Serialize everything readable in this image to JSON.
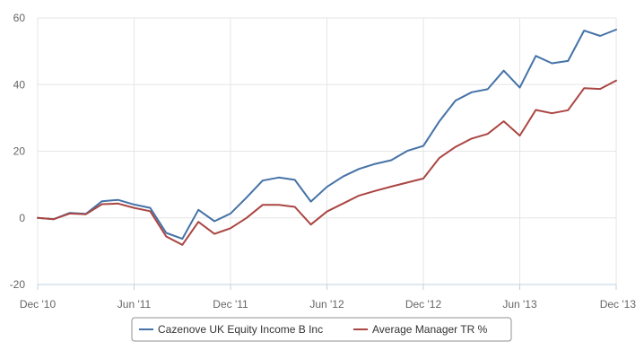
{
  "chart_data": {
    "type": "line",
    "y_ticks": [
      -20,
      0,
      20,
      40,
      60
    ],
    "ylim": [
      -20,
      60
    ],
    "x_ticks": [
      {
        "label": "Dec '10",
        "x": 0
      },
      {
        "label": "Jun '11",
        "x": 6
      },
      {
        "label": "Dec '11",
        "x": 12
      },
      {
        "label": "Jun '12",
        "x": 18
      },
      {
        "label": "Dec '12",
        "x": 24
      },
      {
        "label": "Jun '13",
        "x": 30
      },
      {
        "label": "Dec '13",
        "x": 36
      }
    ],
    "xlim": [
      0,
      36
    ],
    "grid": true,
    "legend_position": "bottom-center",
    "series": [
      {
        "name": "Cazenove UK Equity Income B Inc",
        "color": "#4572a7",
        "values": [
          0.0,
          -0.4,
          1.5,
          1.2,
          5.0,
          5.4,
          4.0,
          3.0,
          -4.5,
          -6.3,
          2.4,
          -1.0,
          1.3,
          6.1,
          11.2,
          12.1,
          11.4,
          4.9,
          9.3,
          12.4,
          14.7,
          16.2,
          17.3,
          20.1,
          21.6,
          29.0,
          35.2,
          37.7,
          38.6,
          44.2,
          39.1,
          48.6,
          46.4,
          47.1,
          56.2,
          54.6,
          56.5
        ]
      },
      {
        "name": "Average Manager TR %",
        "color": "#aa4643",
        "values": [
          0.0,
          -0.4,
          1.3,
          1.1,
          4.1,
          4.3,
          3.0,
          2.0,
          -5.6,
          -8.1,
          -1.2,
          -4.8,
          -3.1,
          0.0,
          3.9,
          3.9,
          3.3,
          -2.0,
          1.9,
          4.3,
          6.7,
          8.1,
          9.4,
          10.6,
          11.8,
          18.0,
          21.3,
          23.8,
          25.2,
          29.0,
          24.7,
          32.4,
          31.4,
          32.3,
          38.9,
          38.7,
          41.2
        ]
      }
    ]
  }
}
